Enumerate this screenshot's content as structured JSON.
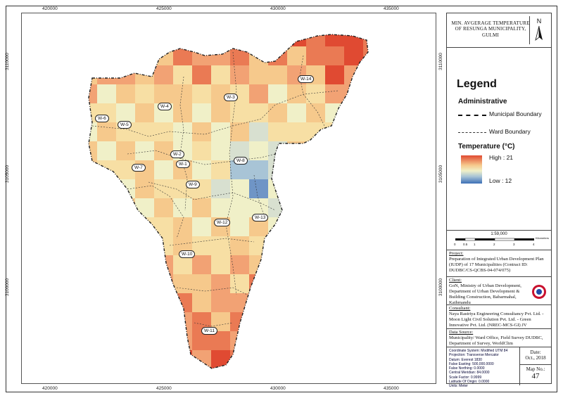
{
  "map": {
    "x_ticks": [
      "420000",
      "425000",
      "430000",
      "435000"
    ],
    "y_ticks": [
      "3110000",
      "3105000",
      "3100000"
    ],
    "wards": [
      "W-14",
      "W-3",
      "W-4",
      "W-6",
      "W-5",
      "W-2",
      "W-1",
      "W-8",
      "W-7",
      "W-9",
      "W-13",
      "W-12",
      "W-10",
      "W-11"
    ],
    "colors": {
      "high": "#e04a32",
      "mid": "#f0f0c8",
      "low": "#3c6fb6"
    }
  },
  "panel": {
    "title": "MIN. AVGERAGE TEMPERATURE OF RESUNGA MUNICIPALITY, GULMI",
    "north": "N",
    "legend": "Legend",
    "administrative": "Administrative",
    "municipal_boundary": "Municipal Boundary",
    "ward_boundary": "Ward Boundary",
    "temperature": "Temperature (°C)",
    "high": "High : 21",
    "low": "Low : 12",
    "scale": "1:59,000",
    "scale_unit": "Kilometers",
    "scale_ticks": [
      "0",
      "0.5",
      "1",
      "2",
      "3",
      "4"
    ],
    "project_head": "Project:",
    "project": "Preparation of Integrated Urban Development Plan (IUDP) of 17 Municipalities (Contract ID: DUDBC/CS-QCBS-04-074/075)",
    "client_head": "Client:",
    "client": "GoN, Ministry of Urban Development, Department of Urban Development & Building Construction, Babarmahal, Kathmandu",
    "consultant_head": "Consultant:",
    "consultant": "Naya Rastriya Engineering Consultancy Pvt. Ltd. - Moon Light Civil Solution Pvt. Ltd. - Green Innovative Pvt. Ltd. (NREC-MCS-GI) JV",
    "data_head": "Data Source:",
    "data": "Municipality/ Ward Office, Field Survey DUDBC, Department of Survey, WorldClim",
    "coords": [
      "Coordinate System: Modified UTM 84",
      "Projection: Transverse Mercator",
      "Datum: Everest 1830",
      "False Easting: 500,000.0000",
      "False Northing: 0.0000",
      "Central Meridian: 84.0000",
      "Scale Factor: 0.9999",
      "Latitude Of Origin: 0.0000",
      "Units: Meter"
    ],
    "date_head": "Date:",
    "date": "Oct., 2018",
    "mapno_head": "Map No.:",
    "mapno": "47"
  }
}
